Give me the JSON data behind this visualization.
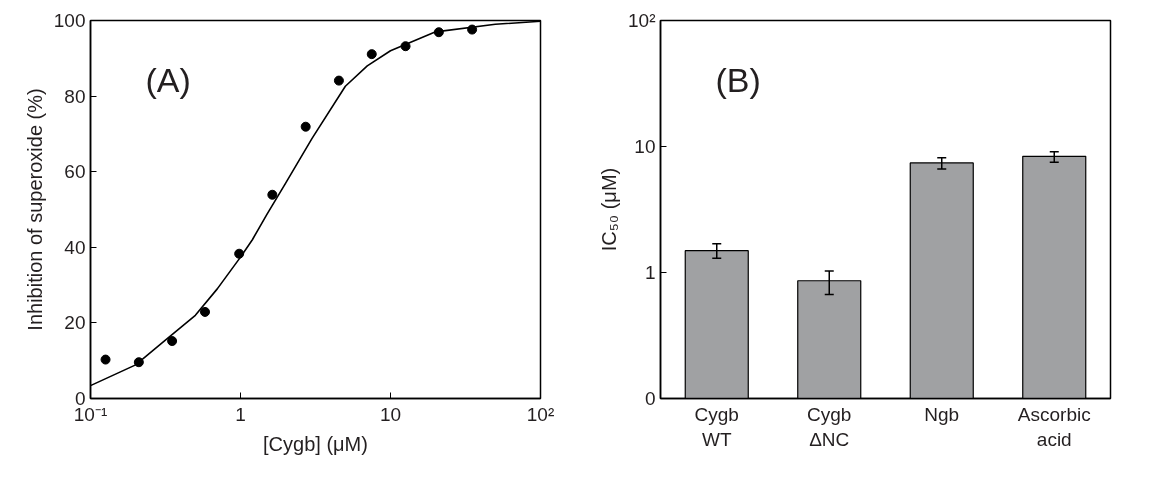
{
  "chart_data": [
    {
      "type": "scatter",
      "xlabel": "[Cygb] (μM)",
      "ylabel": "Inhibition of superoxide (%)",
      "annotations": [
        "(A)"
      ],
      "log": "x",
      "grid": false,
      "xlim": [
        0.1,
        100
      ],
      "ylim": [
        0,
        100
      ],
      "xticks": [
        {
          "value": 0.1,
          "label": "10⁻¹"
        },
        1,
        10,
        {
          "value": 100,
          "label": "10²"
        }
      ],
      "yticks": [
        0,
        20,
        40,
        60,
        80,
        100
      ],
      "series": [
        {
          "type": "scatter",
          "marker": "circle",
          "color": "#000000",
          "x": [
            0.126,
            0.21,
            0.35,
            0.58,
            0.98,
            1.63,
            2.72,
            4.53,
            7.5,
            12.6,
            21,
            35
          ],
          "values": [
            10.3,
            9.6,
            15.2,
            22.9,
            38.3,
            53.9,
            71.9,
            84.1,
            91.1,
            93.2,
            96.9,
            97.6
          ]
        },
        {
          "type": "line",
          "line_style": "solid",
          "color": "#000000",
          "x": [
            0.1,
            0.2,
            0.3,
            0.5,
            0.7,
            1,
            1.2,
            1.5,
            2,
            3,
            5,
            7,
            10,
            20,
            50,
            100
          ],
          "values": [
            3.4,
            8.9,
            14.7,
            22,
            29,
            37.4,
            42,
            48.7,
            57,
            68.8,
            82.6,
            88,
            92,
            97,
            99,
            99.8
          ]
        }
      ]
    },
    {
      "type": "bar",
      "ylabel": "IC₅₀ (μM)",
      "annotations": [
        "(B)"
      ],
      "log": true,
      "grid": false,
      "color": "#a0a1a3",
      "categories": [
        "Cygb\nWT",
        "Cygb\nΔNC",
        "Ngb",
        "Ascorbic\nacid"
      ],
      "ylim": [
        0.1,
        100
      ],
      "yticks": [
        {
          "value": 0.1,
          "label": "0"
        },
        1,
        10,
        {
          "value": 100,
          "label": "10²"
        }
      ],
      "values": [
        1.49,
        0.86,
        7.41,
        8.36
      ],
      "errors": [
        [
          1.3,
          1.69
        ],
        [
          0.67,
          1.03
        ],
        [
          6.62,
          8.16
        ],
        [
          7.5,
          9.1
        ]
      ]
    }
  ]
}
